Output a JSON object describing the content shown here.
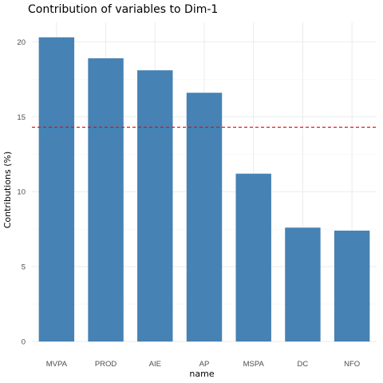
{
  "chart_data": {
    "type": "bar",
    "title": "Contribution of variables to Dim-1",
    "xlabel": "name",
    "ylabel": "Contributions (%)",
    "categories": [
      "MVPA",
      "PROD",
      "AIE",
      "AP",
      "MSPA",
      "DC",
      "NFO"
    ],
    "values": [
      20.3,
      18.9,
      18.1,
      16.6,
      11.2,
      7.6,
      7.4
    ],
    "ylim": [
      0,
      21.3
    ],
    "yticks": [
      0,
      5,
      10,
      15,
      20
    ],
    "reference_line": {
      "value": 14.3,
      "style": "dashed",
      "color": "#ff0000"
    },
    "bar_color": "#4682b4",
    "grid": true,
    "legend": "none"
  }
}
